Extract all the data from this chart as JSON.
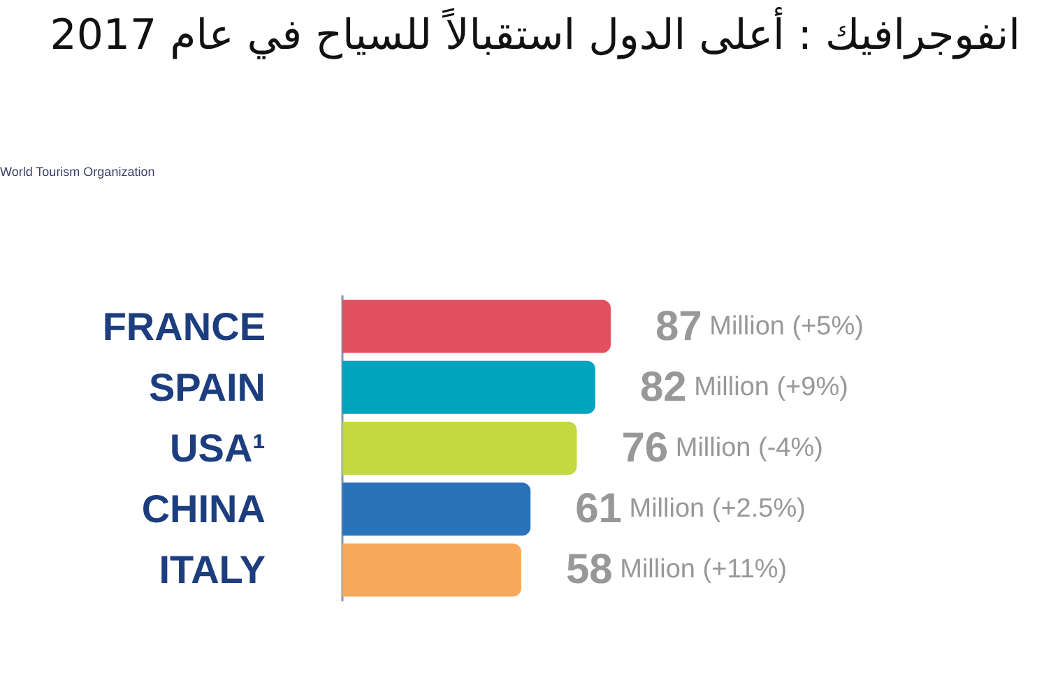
{
  "chart_data": {
    "type": "bar",
    "orientation": "horizontal",
    "title": "انفوجرافيك : أعلى الدول استقبالاً للسياح في عام 2017",
    "annotations": [
      "World Tourism Organization"
    ],
    "categories": [
      "FRANCE",
      "SPAIN",
      "USA¹",
      "CHINA",
      "ITALY"
    ],
    "values": [
      87,
      82,
      76,
      61,
      58
    ],
    "colors": [
      "#e2505f",
      "#00a4bf",
      "#c2d940",
      "#2a73ba",
      "#f9a95a"
    ],
    "value_labels": [
      "87 Million (+5%)",
      "82 Million (+9%)",
      "76 Million (-4%)",
      "61 Million (+2.5%)",
      "58 Million (+11%)"
    ]
  }
}
